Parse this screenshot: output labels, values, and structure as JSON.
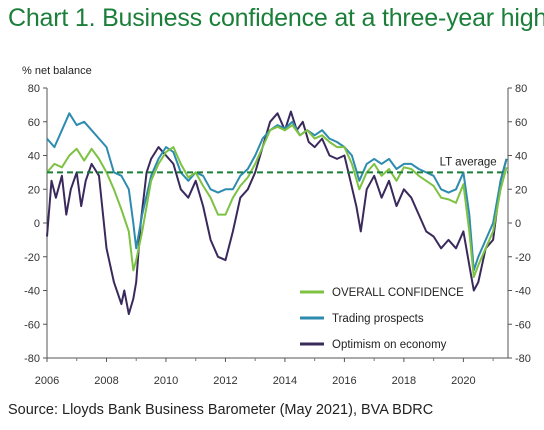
{
  "title": "Chart 1. Business confidence at a three-year high",
  "source": "Source: Lloyds Bank Business Barometer (May 2021), BVA BDRC",
  "colors": {
    "title": "#1b7f3a",
    "overall": "#7dc242",
    "trading": "#2e8bb0",
    "optimism": "#3a2a5c",
    "lt_average": "#1b7f3a"
  },
  "chart_data": {
    "type": "line",
    "ylabel": "% net balance",
    "ylim": [
      -80,
      80
    ],
    "yticks": [
      80,
      60,
      40,
      20,
      0,
      -20,
      -40,
      -60,
      -80
    ],
    "xlim": [
      2006,
      2021.5
    ],
    "xticks": [
      2006,
      2008,
      2010,
      2012,
      2014,
      2016,
      2018,
      2020
    ],
    "grid": false,
    "legend_position": "bottom-right",
    "annotation": {
      "label": "LT average",
      "value": 30
    },
    "series": [
      {
        "name": "OVERALL CONFIDENCE",
        "key": "overall",
        "points": [
          [
            2006.0,
            30
          ],
          [
            2006.25,
            35
          ],
          [
            2006.5,
            33
          ],
          [
            2006.75,
            40
          ],
          [
            2007.0,
            44
          ],
          [
            2007.25,
            37
          ],
          [
            2007.5,
            44
          ],
          [
            2007.75,
            38
          ],
          [
            2008.0,
            30
          ],
          [
            2008.25,
            20
          ],
          [
            2008.5,
            8
          ],
          [
            2008.75,
            -5
          ],
          [
            2008.9,
            -28
          ],
          [
            2009.0,
            -22
          ],
          [
            2009.2,
            -5
          ],
          [
            2009.5,
            25
          ],
          [
            2009.75,
            35
          ],
          [
            2010.0,
            42
          ],
          [
            2010.25,
            45
          ],
          [
            2010.5,
            35
          ],
          [
            2010.75,
            27
          ],
          [
            2011.0,
            30
          ],
          [
            2011.25,
            22
          ],
          [
            2011.5,
            15
          ],
          [
            2011.75,
            5
          ],
          [
            2012.0,
            5
          ],
          [
            2012.25,
            15
          ],
          [
            2012.5,
            22
          ],
          [
            2012.75,
            27
          ],
          [
            2013.0,
            35
          ],
          [
            2013.25,
            45
          ],
          [
            2013.5,
            55
          ],
          [
            2013.75,
            57
          ],
          [
            2014.0,
            55
          ],
          [
            2014.25,
            58
          ],
          [
            2014.5,
            52
          ],
          [
            2014.75,
            55
          ],
          [
            2015.0,
            50
          ],
          [
            2015.25,
            52
          ],
          [
            2015.5,
            48
          ],
          [
            2015.75,
            45
          ],
          [
            2016.0,
            45
          ],
          [
            2016.25,
            35
          ],
          [
            2016.5,
            20
          ],
          [
            2016.75,
            30
          ],
          [
            2017.0,
            35
          ],
          [
            2017.25,
            28
          ],
          [
            2017.5,
            32
          ],
          [
            2017.75,
            25
          ],
          [
            2018.0,
            33
          ],
          [
            2018.25,
            32
          ],
          [
            2018.5,
            28
          ],
          [
            2018.75,
            25
          ],
          [
            2019.0,
            22
          ],
          [
            2019.25,
            15
          ],
          [
            2019.5,
            14
          ],
          [
            2019.75,
            12
          ],
          [
            2020.0,
            23
          ],
          [
            2020.2,
            -5
          ],
          [
            2020.35,
            -32
          ],
          [
            2020.5,
            -25
          ],
          [
            2020.75,
            -15
          ],
          [
            2021.0,
            -5
          ],
          [
            2021.25,
            20
          ],
          [
            2021.45,
            33
          ]
        ]
      },
      {
        "name": "Trading prospects",
        "key": "trading",
        "points": [
          [
            2006.0,
            50
          ],
          [
            2006.25,
            45
          ],
          [
            2006.5,
            55
          ],
          [
            2006.75,
            65
          ],
          [
            2007.0,
            58
          ],
          [
            2007.25,
            60
          ],
          [
            2007.5,
            55
          ],
          [
            2007.75,
            50
          ],
          [
            2008.0,
            45
          ],
          [
            2008.25,
            30
          ],
          [
            2008.5,
            28
          ],
          [
            2008.75,
            20
          ],
          [
            2008.9,
            0
          ],
          [
            2009.0,
            -15
          ],
          [
            2009.2,
            5
          ],
          [
            2009.5,
            28
          ],
          [
            2009.75,
            38
          ],
          [
            2010.0,
            45
          ],
          [
            2010.25,
            42
          ],
          [
            2010.5,
            30
          ],
          [
            2010.75,
            25
          ],
          [
            2011.0,
            30
          ],
          [
            2011.25,
            28
          ],
          [
            2011.5,
            20
          ],
          [
            2011.75,
            18
          ],
          [
            2012.0,
            20
          ],
          [
            2012.25,
            20
          ],
          [
            2012.5,
            28
          ],
          [
            2012.75,
            32
          ],
          [
            2013.0,
            40
          ],
          [
            2013.25,
            50
          ],
          [
            2013.5,
            55
          ],
          [
            2013.75,
            58
          ],
          [
            2014.0,
            56
          ],
          [
            2014.25,
            60
          ],
          [
            2014.5,
            52
          ],
          [
            2014.75,
            55
          ],
          [
            2015.0,
            52
          ],
          [
            2015.25,
            55
          ],
          [
            2015.5,
            50
          ],
          [
            2015.75,
            48
          ],
          [
            2016.0,
            45
          ],
          [
            2016.25,
            40
          ],
          [
            2016.5,
            25
          ],
          [
            2016.75,
            35
          ],
          [
            2017.0,
            38
          ],
          [
            2017.25,
            35
          ],
          [
            2017.5,
            38
          ],
          [
            2017.75,
            32
          ],
          [
            2018.0,
            35
          ],
          [
            2018.25,
            35
          ],
          [
            2018.5,
            32
          ],
          [
            2018.75,
            30
          ],
          [
            2019.0,
            28
          ],
          [
            2019.25,
            20
          ],
          [
            2019.5,
            18
          ],
          [
            2019.75,
            20
          ],
          [
            2020.0,
            30
          ],
          [
            2020.2,
            5
          ],
          [
            2020.35,
            -28
          ],
          [
            2020.5,
            -20
          ],
          [
            2020.75,
            -10
          ],
          [
            2021.0,
            0
          ],
          [
            2021.25,
            25
          ],
          [
            2021.45,
            38
          ]
        ]
      },
      {
        "name": "Optimism on economy",
        "key": "optimism",
        "points": [
          [
            2006.0,
            -8
          ],
          [
            2006.15,
            25
          ],
          [
            2006.3,
            15
          ],
          [
            2006.5,
            28
          ],
          [
            2006.65,
            5
          ],
          [
            2006.8,
            20
          ],
          [
            2007.0,
            30
          ],
          [
            2007.15,
            10
          ],
          [
            2007.3,
            25
          ],
          [
            2007.5,
            35
          ],
          [
            2007.75,
            28
          ],
          [
            2008.0,
            -15
          ],
          [
            2008.25,
            -35
          ],
          [
            2008.5,
            -48
          ],
          [
            2008.6,
            -40
          ],
          [
            2008.75,
            -54
          ],
          [
            2008.9,
            -45
          ],
          [
            2009.0,
            -35
          ],
          [
            2009.15,
            0
          ],
          [
            2009.35,
            30
          ],
          [
            2009.5,
            38
          ],
          [
            2009.75,
            45
          ],
          [
            2010.0,
            40
          ],
          [
            2010.25,
            35
          ],
          [
            2010.5,
            20
          ],
          [
            2010.75,
            15
          ],
          [
            2011.0,
            25
          ],
          [
            2011.25,
            10
          ],
          [
            2011.5,
            -10
          ],
          [
            2011.75,
            -20
          ],
          [
            2012.0,
            -22
          ],
          [
            2012.25,
            -5
          ],
          [
            2012.5,
            15
          ],
          [
            2012.75,
            20
          ],
          [
            2013.0,
            30
          ],
          [
            2013.25,
            45
          ],
          [
            2013.5,
            60
          ],
          [
            2013.75,
            65
          ],
          [
            2014.0,
            55
          ],
          [
            2014.2,
            66
          ],
          [
            2014.4,
            55
          ],
          [
            2014.6,
            60
          ],
          [
            2014.8,
            48
          ],
          [
            2015.0,
            45
          ],
          [
            2015.25,
            50
          ],
          [
            2015.5,
            40
          ],
          [
            2015.75,
            38
          ],
          [
            2016.0,
            40
          ],
          [
            2016.2,
            25
          ],
          [
            2016.4,
            10
          ],
          [
            2016.55,
            -5
          ],
          [
            2016.75,
            20
          ],
          [
            2017.0,
            28
          ],
          [
            2017.25,
            15
          ],
          [
            2017.5,
            25
          ],
          [
            2017.75,
            10
          ],
          [
            2018.0,
            20
          ],
          [
            2018.25,
            15
          ],
          [
            2018.5,
            5
          ],
          [
            2018.75,
            -5
          ],
          [
            2019.0,
            -8
          ],
          [
            2019.25,
            -15
          ],
          [
            2019.5,
            -10
          ],
          [
            2019.75,
            -15
          ],
          [
            2020.0,
            -5
          ],
          [
            2020.2,
            -25
          ],
          [
            2020.35,
            -40
          ],
          [
            2020.5,
            -35
          ],
          [
            2020.75,
            -15
          ],
          [
            2021.0,
            -10
          ],
          [
            2021.25,
            25
          ],
          [
            2021.45,
            38
          ]
        ]
      }
    ]
  }
}
